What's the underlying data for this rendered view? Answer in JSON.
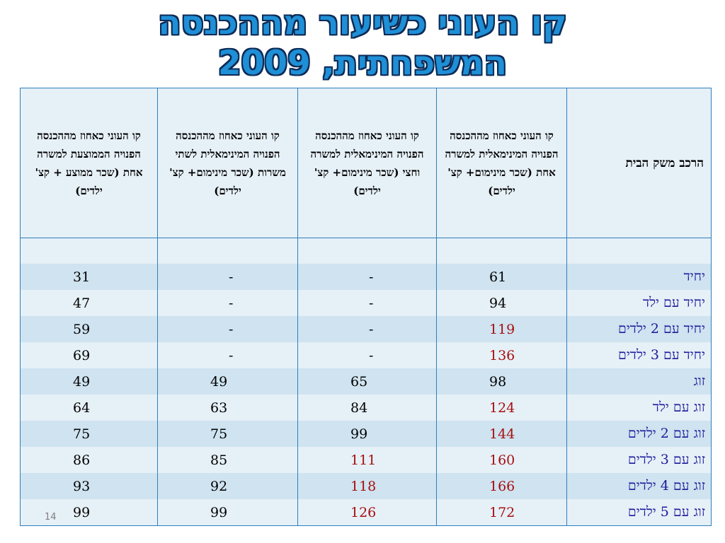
{
  "title": {
    "line1": "קו העוני כשיעור מההכנסה",
    "line2": "המשפחתית, 2009"
  },
  "table": {
    "headers": [
      "הרכב משק הבית",
      "קו העוני כאחוז מההכנסה הפנויה המינימאלית למשרה אחת (שכר מינימום+ קצ' ילדים)",
      "קו העוני כאחוז מההכנסה הפנויה המינימאלית למשרה וחצי (שכר מינימום+ קצ' ילדים)",
      "קו העוני כאחוז מההכנסה הפנויה המינימאלית לשתי משרות (שכר מינימום+ קצ' ילדים)",
      "קו העוני כאחוז מההכנסה הפנויה הממוצעת למשרה אחת (שכר ממוצע + קצ' ילדים)"
    ],
    "rows": [
      {
        "label": "יחיד",
        "c1": "61",
        "c2": "-",
        "c3": "-",
        "c4": "31"
      },
      {
        "label": "יחיד עם ילד",
        "c1": "94",
        "c2": "-",
        "c3": "-",
        "c4": "47"
      },
      {
        "label": "יחיד עם 2 ילדים",
        "c1": "119",
        "c2": "-",
        "c3": "-",
        "c4": "59"
      },
      {
        "label": "יחיד עם 3 ילדים",
        "c1": "136",
        "c2": "-",
        "c3": "-",
        "c4": "69"
      },
      {
        "label": "זוג",
        "c1": "98",
        "c2": "65",
        "c3": "49",
        "c4": "49"
      },
      {
        "label": "זוג עם ילד",
        "c1": "124",
        "c2": "84",
        "c3": "63",
        "c4": "64"
      },
      {
        "label": "זוג עם 2 ילדים",
        "c1": "144",
        "c2": "99",
        "c3": "75",
        "c4": "75"
      },
      {
        "label": "זוג עם 3 ילדים",
        "c1": "160",
        "c2": "111",
        "c3": "85",
        "c4": "86"
      },
      {
        "label": "זוג עם 4 ילדים",
        "c1": "166",
        "c2": "118",
        "c3": "92",
        "c4": "93"
      },
      {
        "label": "זוג עם 5 ילדים",
        "c1": "172",
        "c2": "126",
        "c3": "99",
        "c4": "99"
      }
    ]
  },
  "page_number": "14",
  "colors": {
    "title_fill": "#1f8fd6",
    "title_outline": "#0d2a55",
    "highlight_value": "#a60f0f",
    "row_label": "#1a1a9a",
    "border": "#2e7fbf"
  }
}
